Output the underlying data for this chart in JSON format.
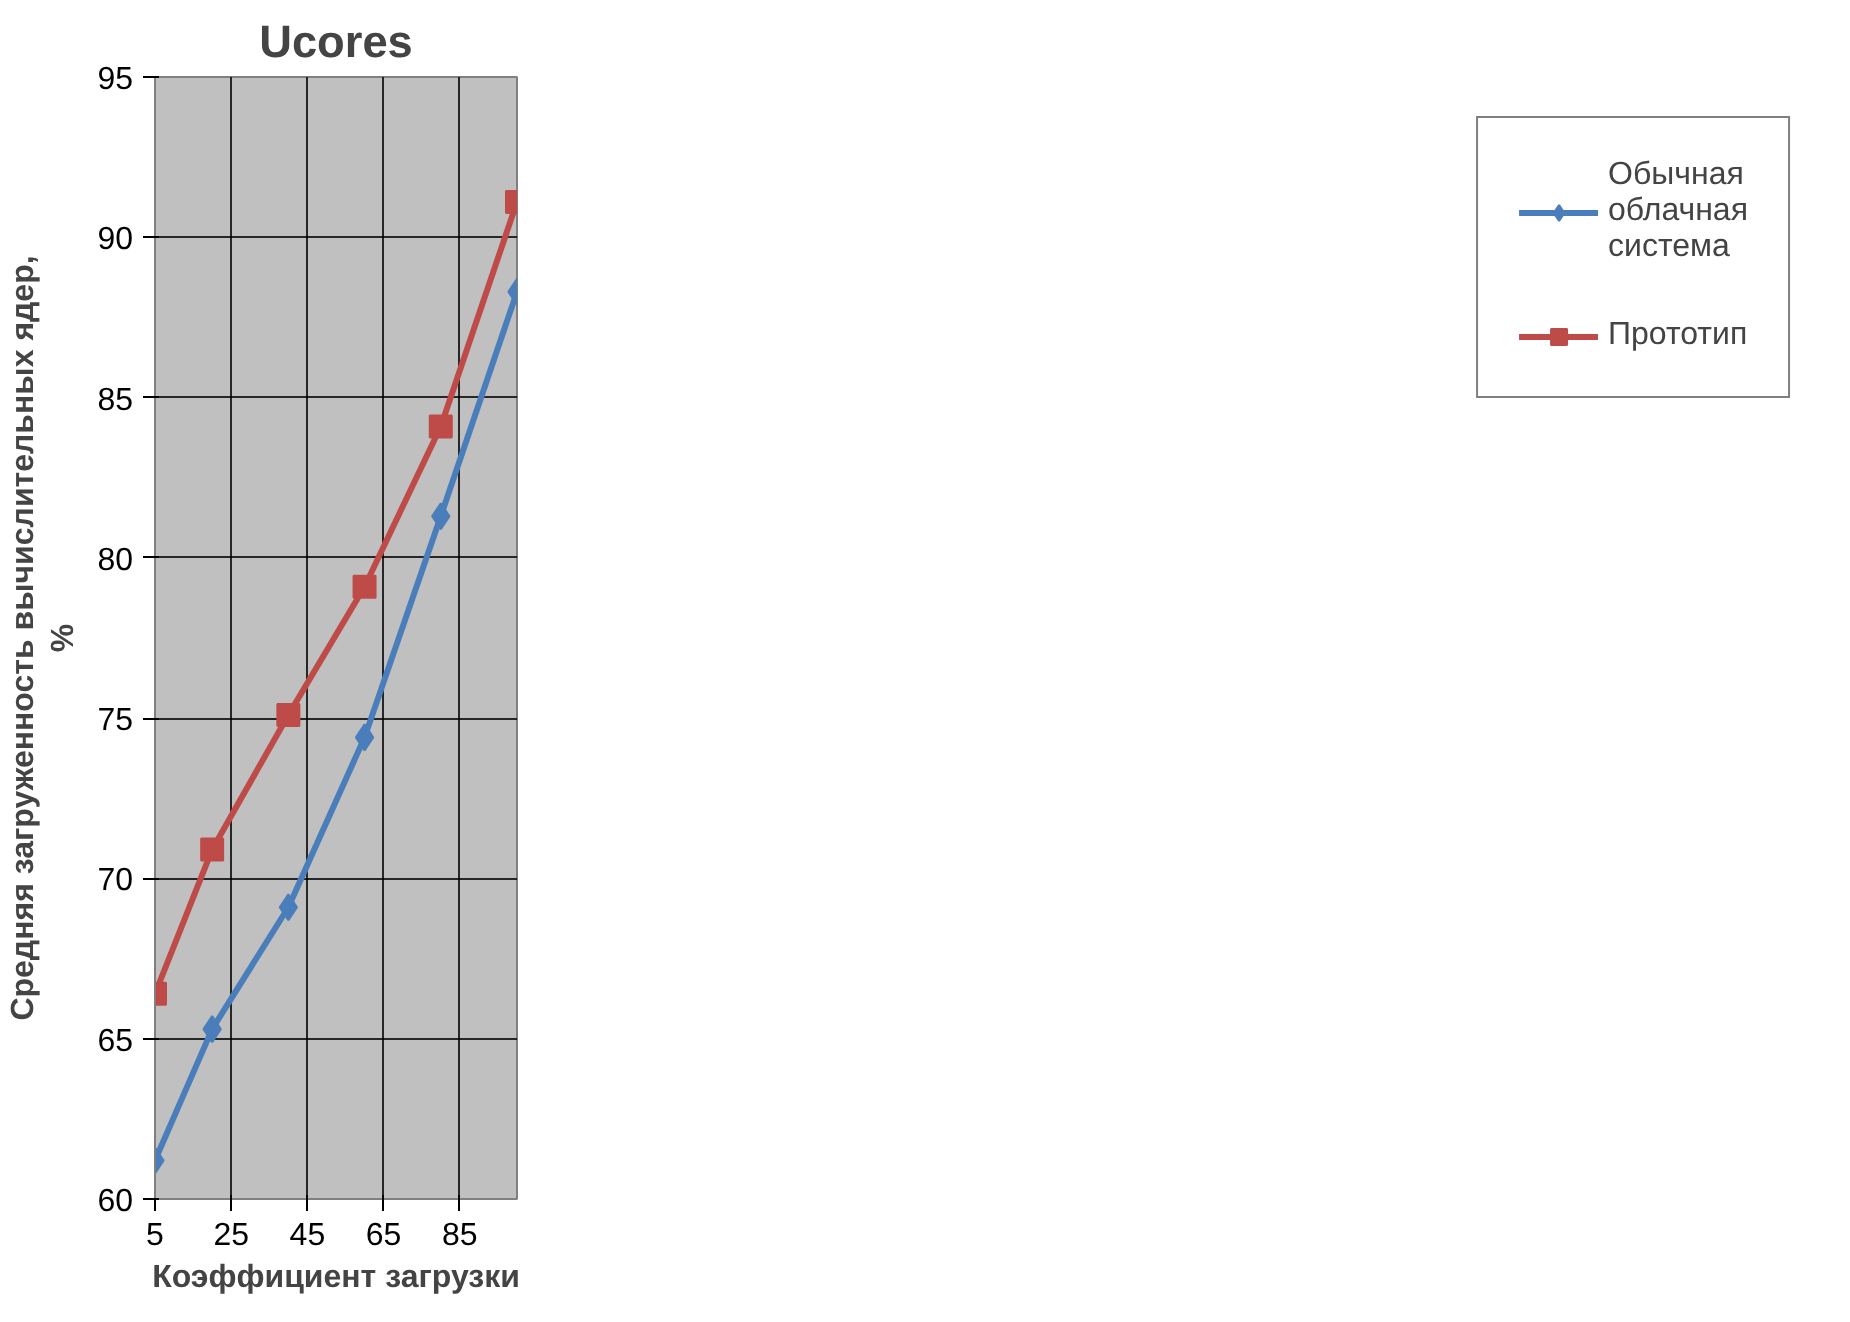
{
  "chart_data": {
    "type": "line",
    "title": "Ucores",
    "xlabel": "Коэффициент загрузки",
    "ylabel": "Средняя загруженность вычислительных ядер, %",
    "x": [
      5,
      20,
      40,
      60,
      80,
      100
    ],
    "series": [
      {
        "name": "Обычная облачная система",
        "color": "#4a7ebb",
        "marker": "diamond",
        "values": [
          61.2,
          65.3,
          69.1,
          74.4,
          81.3,
          88.3
        ]
      },
      {
        "name": "Прототип",
        "color": "#be4b48",
        "marker": "square",
        "values": [
          66.4,
          70.9,
          75.1,
          79.1,
          84.1,
          91.1
        ]
      }
    ],
    "xlim": [
      5,
      100
    ],
    "xticks": [
      5,
      25,
      45,
      65,
      85
    ],
    "ylim": [
      60,
      95
    ],
    "yticks": [
      60,
      65,
      70,
      75,
      80,
      85,
      90,
      95
    ],
    "grid": true,
    "legend": "right"
  }
}
